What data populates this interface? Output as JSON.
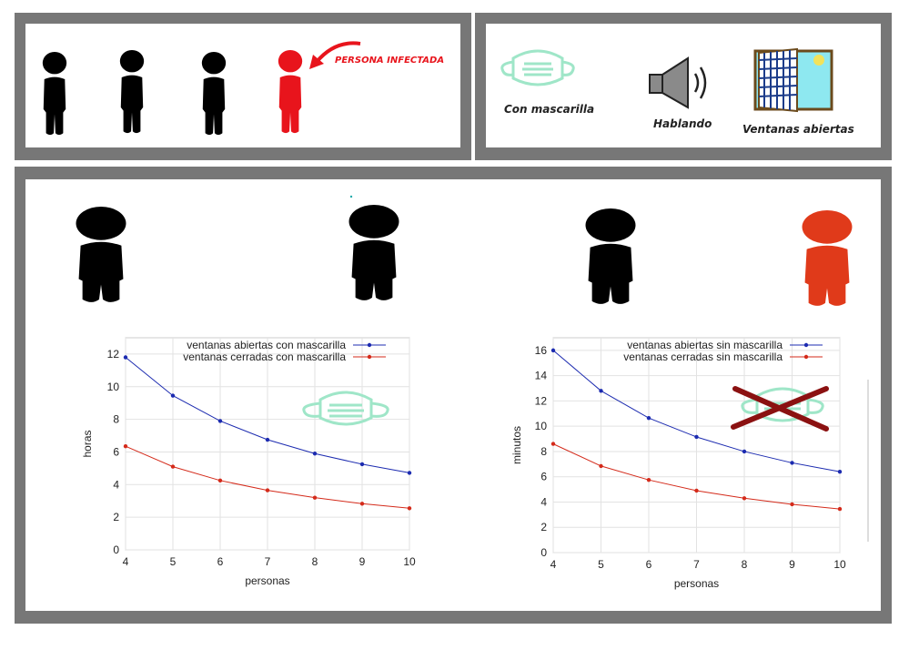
{
  "legend_top": {
    "infected_label": "PERSONA INFECTADA",
    "mask_label": "Con mascarilla",
    "speaking_label": "Hablando",
    "window_label": "Ventanas abiertas"
  },
  "colors": {
    "frame": "#777777",
    "healthy_person": "#000000",
    "infected_person": "#e8141c",
    "infected_person_large": "#e03a1a",
    "mask": "#9fe6c8",
    "cross": "#8b1111",
    "series_open": "#1c2bb0",
    "series_closed": "#d42a1a"
  },
  "chart_data": [
    {
      "type": "line",
      "xlabel": "personas",
      "ylabel": "horas",
      "x": [
        4,
        5,
        6,
        7,
        8,
        9,
        10
      ],
      "xlim": [
        4,
        10
      ],
      "ylim": [
        0,
        13
      ],
      "xticks": [
        "4",
        "5",
        "6",
        "7",
        "8",
        "9",
        "10"
      ],
      "yticks": [
        "0",
        "2",
        "4",
        "6",
        "8",
        "10",
        "12"
      ],
      "grid": true,
      "legend": "top-right",
      "series": [
        {
          "name": "ventanas abiertas con mascarilla",
          "color": "#1c2bb0",
          "values": [
            11.8,
            9.45,
            7.9,
            6.75,
            5.9,
            5.25,
            4.72
          ]
        },
        {
          "name": "ventanas cerradas con mascarilla",
          "color": "#d42a1a",
          "values": [
            6.35,
            5.1,
            4.25,
            3.65,
            3.2,
            2.83,
            2.55
          ]
        }
      ]
    },
    {
      "type": "line",
      "xlabel": "personas",
      "ylabel": "minutos",
      "x": [
        4,
        5,
        6,
        7,
        8,
        9,
        10
      ],
      "xlim": [
        4,
        10
      ],
      "ylim": [
        0,
        17
      ],
      "xticks": [
        "4",
        "5",
        "6",
        "7",
        "8",
        "9",
        "10"
      ],
      "yticks": [
        "0",
        "2",
        "4",
        "6",
        "8",
        "10",
        "12",
        "14",
        "16"
      ],
      "grid": true,
      "legend": "top-right",
      "series": [
        {
          "name": "ventanas abiertas sin mascarilla",
          "color": "#1c2bb0",
          "values": [
            16.0,
            12.8,
            10.65,
            9.15,
            8.0,
            7.1,
            6.4
          ]
        },
        {
          "name": "ventanas cerradas sin mascarilla",
          "color": "#d42a1a",
          "values": [
            8.6,
            6.85,
            5.75,
            4.9,
            4.3,
            3.82,
            3.45
          ]
        }
      ]
    }
  ]
}
